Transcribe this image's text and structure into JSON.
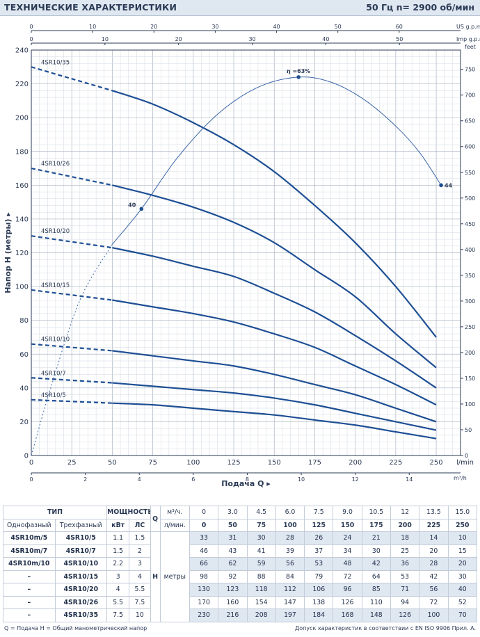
{
  "header": {
    "title": "ТЕХНИЧЕСКИЕ ХАРАКТЕРИСТИКИ",
    "spec": "50 Гц   n= 2900 об/мин"
  },
  "chart_data": {
    "type": "line",
    "xlabel": "Подача Q",
    "ylabel": "Напор H (метры)",
    "x_unit_primary": "l/min",
    "x_unit_m3h": "m³/h",
    "x_unit_us": "US g.p.m.",
    "x_unit_imp": "Imp g.p.m.",
    "y2_unit": "feet",
    "xlim": [
      0,
      265
    ],
    "ylim": [
      0,
      240
    ],
    "x_ticks_lmin": [
      0,
      25,
      50,
      75,
      100,
      125,
      150,
      175,
      200,
      225,
      250
    ],
    "x_ticks_m3h": [
      0,
      2,
      4,
      6,
      8,
      10,
      12,
      14
    ],
    "x_ticks_us": [
      0,
      10,
      20,
      30,
      40,
      50,
      60
    ],
    "x_ticks_imp": [
      0,
      10,
      20,
      30,
      40,
      50
    ],
    "y_ticks": [
      0,
      20,
      40,
      60,
      80,
      100,
      120,
      140,
      160,
      180,
      200,
      220,
      240
    ],
    "y2_ticks": [
      0,
      50,
      100,
      150,
      200,
      250,
      300,
      350,
      400,
      450,
      500,
      550,
      600,
      650,
      700,
      750
    ],
    "grid": true,
    "x": [
      0,
      50,
      75,
      100,
      125,
      150,
      175,
      200,
      225,
      250
    ],
    "series": [
      {
        "name": "4SR10/5",
        "values": [
          33,
          31,
          30,
          28,
          26,
          24,
          21,
          18,
          14,
          10
        ]
      },
      {
        "name": "4SR10/7",
        "values": [
          46,
          43,
          41,
          39,
          37,
          34,
          30,
          25,
          20,
          15
        ]
      },
      {
        "name": "4SR10/10",
        "values": [
          66,
          62,
          59,
          56,
          53,
          48,
          42,
          36,
          28,
          20
        ]
      },
      {
        "name": "4SR10/15",
        "values": [
          98,
          92,
          88,
          84,
          79,
          72,
          64,
          53,
          42,
          30
        ]
      },
      {
        "name": "4SR10/20",
        "values": [
          130,
          123,
          118,
          112,
          106,
          96,
          85,
          71,
          56,
          40
        ]
      },
      {
        "name": "4SR10/26",
        "values": [
          170,
          160,
          154,
          147,
          138,
          126,
          110,
          94,
          72,
          52
        ]
      },
      {
        "name": "4SR10/35",
        "values": [
          230,
          216,
          208,
          197,
          184,
          168,
          148,
          126,
          100,
          70
        ]
      }
    ],
    "efficiency_curve": {
      "points": [
        [
          0,
          0
        ],
        [
          12,
          40
        ],
        [
          30,
          92
        ],
        [
          50,
          125
        ],
        [
          68,
          146
        ],
        [
          90,
          176
        ],
        [
          115,
          202
        ],
        [
          140,
          218
        ],
        [
          165,
          224
        ],
        [
          185,
          221
        ],
        [
          205,
          211
        ],
        [
          225,
          195
        ],
        [
          240,
          179
        ],
        [
          253,
          160
        ]
      ],
      "labels": [
        {
          "text": "40",
          "x": 68,
          "y": 146
        },
        {
          "text": "η =63%",
          "x": 165,
          "y": 224
        },
        {
          "text": "44",
          "x": 253,
          "y": 160
        }
      ]
    }
  },
  "table": {
    "h_type": "ТИП",
    "h_power": "МОЩНОСТЬ",
    "h_q": "Q",
    "h_single": "Однофазный",
    "h_three": "Трехфазный",
    "h_kw": "кВт",
    "h_hp": "ЛС",
    "h_m3h": "м³/ч.",
    "h_lmin": "л/мин.",
    "h_h": "H",
    "h_meters": "метры",
    "q_m3h": [
      "0",
      "3.0",
      "4.5",
      "6.0",
      "7.5",
      "9.0",
      "10.5",
      "12",
      "13.5",
      "15.0"
    ],
    "q_lmin": [
      "0",
      "50",
      "75",
      "100",
      "125",
      "150",
      "175",
      "200",
      "225",
      "250"
    ],
    "rows": [
      {
        "single": "4SR10m/5",
        "three": "4SR10/5",
        "kw": "1.1",
        "hp": "1.5",
        "h": [
          "33",
          "31",
          "30",
          "28",
          "26",
          "24",
          "21",
          "18",
          "14",
          "10"
        ]
      },
      {
        "single": "4SR10m/7",
        "three": "4SR10/7",
        "kw": "1.5",
        "hp": "2",
        "h": [
          "46",
          "43",
          "41",
          "39",
          "37",
          "34",
          "30",
          "25",
          "20",
          "15"
        ]
      },
      {
        "single": "4SR10m/10",
        "three": "4SR10/10",
        "kw": "2.2",
        "hp": "3",
        "h": [
          "66",
          "62",
          "59",
          "56",
          "53",
          "48",
          "42",
          "36",
          "28",
          "20"
        ]
      },
      {
        "single": "–",
        "three": "4SR10/15",
        "kw": "3",
        "hp": "4",
        "h": [
          "98",
          "92",
          "88",
          "84",
          "79",
          "72",
          "64",
          "53",
          "42",
          "30"
        ]
      },
      {
        "single": "–",
        "three": "4SR10/20",
        "kw": "4",
        "hp": "5.5",
        "h": [
          "130",
          "123",
          "118",
          "112",
          "106",
          "96",
          "85",
          "71",
          "56",
          "40"
        ]
      },
      {
        "single": "–",
        "three": "4SR10/26",
        "kw": "5.5",
        "hp": "7.5",
        "h": [
          "170",
          "160",
          "154",
          "147",
          "138",
          "126",
          "110",
          "94",
          "72",
          "52"
        ]
      },
      {
        "single": "–",
        "three": "4SR10/35",
        "kw": "7.5",
        "hp": "10",
        "h": [
          "230",
          "216",
          "208",
          "197",
          "184",
          "168",
          "148",
          "126",
          "100",
          "70"
        ]
      }
    ]
  },
  "footer": {
    "left": "Q = Подача  H = Общий манометрический напор",
    "right": "Допуск характеристик в соответствии с EN ISO 9906 Прил. A."
  }
}
